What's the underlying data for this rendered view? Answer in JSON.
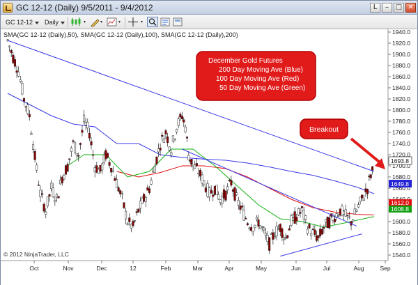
{
  "window": {
    "title": "GC 12-12 (Daily)  9/5/2011 - 9/4/2012",
    "buttons": {
      "lock": "L",
      "minimize": "–",
      "maximize": "□",
      "close": "✕"
    }
  },
  "toolbar": {
    "instrument": "GC 12-12",
    "period": "Daily"
  },
  "icons": {
    "app": "ninjatrader-chart-icon",
    "bar-type": "candlestick-icon",
    "drawing": "pencil-icon",
    "crosshair": "crosshair-icon",
    "zoom": "magnifier-icon",
    "properties": "properties-icon"
  },
  "chart": {
    "indicator_label": "SMA(GC 12-12 (Daily),50), SMA(GC 12-12 (Daily),100), SMA(GC 12-12 (Daily),200)",
    "copyright": "© 2012 NinjaTrader, LLC",
    "annotation": {
      "title": "December Gold Futures",
      "line1": "200 Day Moving Ave (Blue)",
      "line2": "100 Day Moving Ave (Red)",
      "line3": "50 Day Moving Ave (Green)"
    },
    "breakout_label": "Breakout",
    "price_tags": {
      "last": "1693.8",
      "sma200": "1649.8",
      "sma100": "1612.0",
      "sma50": "1608.8"
    },
    "colors": {
      "sma200": "#3838e8",
      "sma100": "#e01010",
      "sma50": "#10b010",
      "trendline": "#3838e8",
      "candle": "#8b0000",
      "annotation_fill": "#e02020",
      "annotation_border": "#c00000"
    }
  },
  "chart_data": {
    "type": "line",
    "ylim": [
      1530,
      1945
    ],
    "y_ticks": [
      "1940.0",
      "1920.0",
      "1900.0",
      "1880.0",
      "1860.0",
      "1840.0",
      "1820.0",
      "1800.0",
      "1780.0",
      "1760.0",
      "1740.0",
      "1720.0",
      "1700.0",
      "1680.0",
      "1660.0",
      "1640.0",
      "1620.0",
      "1600.0",
      "1580.0",
      "1560.0",
      "1540.0"
    ],
    "x_ticks": [
      "Oct",
      "Nov",
      "Dec",
      "12",
      "Feb",
      "Mar",
      "Apr",
      "May",
      "Jun",
      "Jul",
      "Aug",
      "Sep"
    ],
    "price_path": [
      [
        0,
        1925
      ],
      [
        5,
        1895
      ],
      [
        10,
        1870
      ],
      [
        15,
        1820
      ],
      [
        20,
        1790
      ],
      [
        25,
        1715
      ],
      [
        30,
        1650
      ],
      [
        35,
        1620
      ],
      [
        40,
        1660
      ],
      [
        45,
        1640
      ],
      [
        50,
        1680
      ],
      [
        55,
        1700
      ],
      [
        60,
        1740
      ],
      [
        65,
        1720
      ],
      [
        70,
        1780
      ],
      [
        75,
        1760
      ],
      [
        80,
        1700
      ],
      [
        85,
        1690
      ],
      [
        90,
        1720
      ],
      [
        95,
        1700
      ],
      [
        100,
        1670
      ],
      [
        105,
        1640
      ],
      [
        110,
        1600
      ],
      [
        115,
        1590
      ],
      [
        120,
        1620
      ],
      [
        125,
        1640
      ],
      [
        130,
        1660
      ],
      [
        135,
        1700
      ],
      [
        140,
        1740
      ],
      [
        145,
        1760
      ],
      [
        150,
        1730
      ],
      [
        155,
        1770
      ],
      [
        160,
        1790
      ],
      [
        163,
        1770
      ],
      [
        166,
        1720
      ],
      [
        170,
        1700
      ],
      [
        175,
        1690
      ],
      [
        180,
        1670
      ],
      [
        185,
        1650
      ],
      [
        190,
        1660
      ],
      [
        195,
        1640
      ],
      [
        200,
        1650
      ],
      [
        205,
        1670
      ],
      [
        210,
        1640
      ],
      [
        215,
        1620
      ],
      [
        220,
        1600
      ],
      [
        225,
        1590
      ],
      [
        230,
        1600
      ],
      [
        235,
        1580
      ],
      [
        240,
        1560
      ],
      [
        245,
        1580
      ],
      [
        250,
        1590
      ],
      [
        255,
        1570
      ],
      [
        260,
        1600
      ],
      [
        265,
        1610
      ],
      [
        270,
        1620
      ],
      [
        275,
        1590
      ],
      [
        280,
        1580
      ],
      [
        285,
        1570
      ],
      [
        290,
        1590
      ],
      [
        295,
        1600
      ],
      [
        300,
        1610
      ],
      [
        305,
        1620
      ],
      [
        310,
        1610
      ],
      [
        315,
        1600
      ],
      [
        320,
        1620
      ],
      [
        325,
        1640
      ],
      [
        330,
        1660
      ],
      [
        333,
        1685
      ],
      [
        336,
        1694
      ]
    ],
    "series": [
      {
        "name": "200 Day Moving Ave (Blue)",
        "values": [
          [
            0,
            1830
          ],
          [
            20,
            1810
          ],
          [
            40,
            1790
          ],
          [
            60,
            1775
          ],
          [
            80,
            1770
          ],
          [
            100,
            1740
          ],
          [
            120,
            1740
          ],
          [
            140,
            1720
          ],
          [
            160,
            1715
          ],
          [
            180,
            1712
          ],
          [
            200,
            1710
          ],
          [
            220,
            1705
          ],
          [
            240,
            1698
          ],
          [
            260,
            1690
          ],
          [
            280,
            1683
          ],
          [
            300,
            1673
          ],
          [
            320,
            1662
          ],
          [
            336,
            1650
          ]
        ]
      },
      {
        "name": "100 Day Moving Ave (Red)",
        "values": [
          [
            100,
            1690
          ],
          [
            120,
            1680
          ],
          [
            140,
            1688
          ],
          [
            160,
            1700
          ],
          [
            180,
            1700
          ],
          [
            200,
            1695
          ],
          [
            220,
            1680
          ],
          [
            240,
            1660
          ],
          [
            260,
            1640
          ],
          [
            280,
            1625
          ],
          [
            300,
            1617
          ],
          [
            320,
            1613
          ],
          [
            336,
            1612
          ]
        ]
      },
      {
        "name": "50 Day Moving Ave (Green)",
        "values": [
          [
            55,
            1700
          ],
          [
            70,
            1720
          ],
          [
            90,
            1720
          ],
          [
            110,
            1680
          ],
          [
            130,
            1690
          ],
          [
            150,
            1730
          ],
          [
            170,
            1730
          ],
          [
            190,
            1700
          ],
          [
            210,
            1665
          ],
          [
            230,
            1630
          ],
          [
            250,
            1605
          ],
          [
            270,
            1600
          ],
          [
            290,
            1590
          ],
          [
            310,
            1598
          ],
          [
            336,
            1609
          ]
        ]
      }
    ],
    "trendlines": [
      {
        "name": "long-term downtrend",
        "from": [
          0,
          1925
        ],
        "to": [
          336,
          1690
        ]
      },
      {
        "name": "triangle upper",
        "from": [
          160,
          1730
        ],
        "to": [
          320,
          1592
        ]
      },
      {
        "name": "triangle lower",
        "from": [
          250,
          1538
        ],
        "to": [
          325,
          1578
        ]
      }
    ],
    "annotations": [
      "December Gold Futures",
      "Breakout"
    ]
  }
}
